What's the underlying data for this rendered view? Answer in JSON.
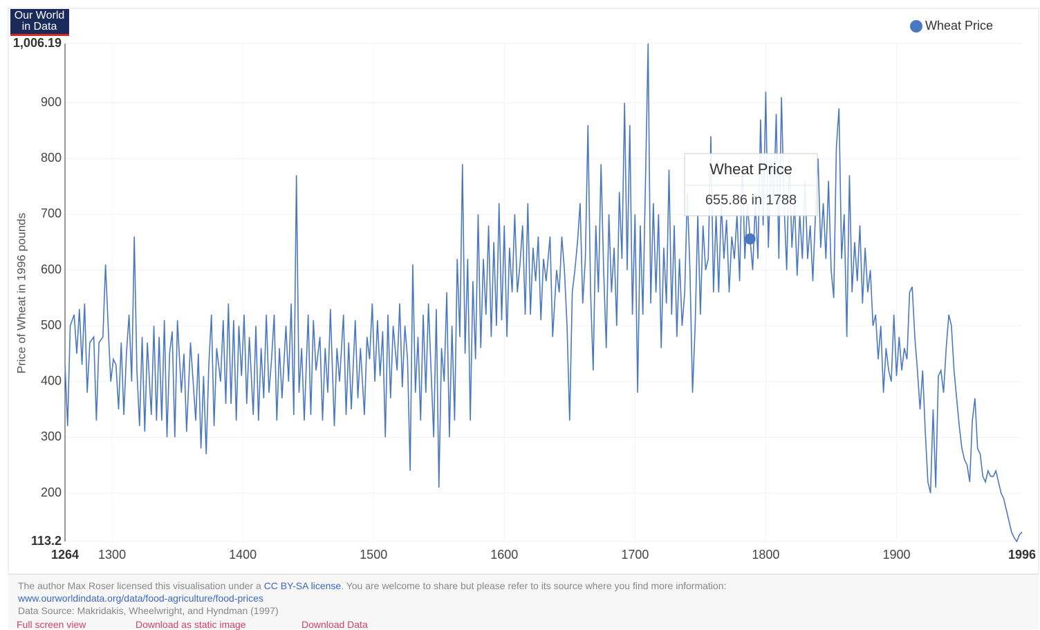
{
  "logo": [
    "Our World",
    "in Data"
  ],
  "chart_data": {
    "type": "line",
    "ylabel": "Price of Wheat in 1996 pounds",
    "xlim": [
      1264,
      1996
    ],
    "xticks": [
      1264,
      1300,
      1400,
      1500,
      1600,
      1700,
      1800,
      1900,
      1996
    ],
    "ylim": [
      113.2,
      1006.19
    ],
    "yticks": [
      113.2,
      200,
      300,
      400,
      500,
      600,
      700,
      800,
      900,
      {
        "value": 1006.19,
        "label": "1,006.19"
      }
    ],
    "grid": true,
    "legend": "top-right",
    "series": [
      {
        "name": "Wheat Price",
        "color": "#4a78c0",
        "x": [
          1264,
          1266,
          1268,
          1271,
          1273,
          1275,
          1277,
          1279,
          1281,
          1283,
          1286,
          1288,
          1290,
          1293,
          1295,
          1297,
          1299,
          1301,
          1303,
          1305,
          1307,
          1309,
          1311,
          1313,
          1315,
          1317,
          1319,
          1321,
          1323,
          1325,
          1327,
          1330,
          1332,
          1334,
          1336,
          1338,
          1340,
          1342,
          1344,
          1346,
          1348,
          1350,
          1353,
          1355,
          1357,
          1360,
          1362,
          1364,
          1366,
          1368,
          1370,
          1372,
          1374,
          1376,
          1378,
          1380,
          1383,
          1385,
          1387,
          1389,
          1391,
          1393,
          1395,
          1397,
          1399,
          1401,
          1403,
          1405,
          1408,
          1410,
          1412,
          1414,
          1416,
          1418,
          1420,
          1422,
          1424,
          1426,
          1428,
          1430,
          1433,
          1435,
          1437,
          1439,
          1441,
          1443,
          1445,
          1447,
          1450,
          1452,
          1454,
          1456,
          1459,
          1461,
          1463,
          1465,
          1467,
          1470,
          1472,
          1474,
          1477,
          1479,
          1481,
          1483,
          1486,
          1488,
          1490,
          1493,
          1495,
          1497,
          1499,
          1501,
          1503,
          1505,
          1507,
          1509,
          1511,
          1513,
          1515,
          1518,
          1520,
          1522,
          1524,
          1526,
          1528,
          1530,
          1532,
          1534,
          1536,
          1538,
          1540,
          1542,
          1544,
          1546,
          1548,
          1550,
          1552,
          1554,
          1556,
          1558,
          1560,
          1562,
          1564,
          1566,
          1568,
          1570,
          1572,
          1574,
          1576,
          1578,
          1580,
          1582,
          1584,
          1586,
          1588,
          1590,
          1592,
          1594,
          1596,
          1598,
          1600,
          1602,
          1604,
          1606,
          1608,
          1610,
          1612,
          1614,
          1616,
          1618,
          1620,
          1622,
          1624,
          1626,
          1628,
          1630,
          1632,
          1635,
          1637,
          1640,
          1642,
          1644,
          1646,
          1648,
          1650,
          1652,
          1654,
          1656,
          1658,
          1660,
          1662,
          1664,
          1666,
          1668,
          1670,
          1672,
          1674,
          1676,
          1678,
          1680,
          1682,
          1684,
          1686,
          1688,
          1690,
          1692,
          1694,
          1696,
          1698,
          1700,
          1702,
          1704,
          1706,
          1708,
          1710,
          1712,
          1714,
          1716,
          1718,
          1720,
          1722,
          1724,
          1726,
          1728,
          1730,
          1732,
          1734,
          1736,
          1738,
          1740,
          1742,
          1744,
          1746,
          1748,
          1750,
          1752,
          1754,
          1756,
          1758,
          1760,
          1762,
          1764,
          1766,
          1768,
          1770,
          1772,
          1774,
          1776,
          1778,
          1780,
          1782,
          1784,
          1786,
          1788,
          1790,
          1792,
          1794,
          1796,
          1798,
          1800,
          1802,
          1804,
          1806,
          1808,
          1810,
          1812,
          1814,
          1816,
          1818,
          1820,
          1822,
          1824,
          1826,
          1828,
          1830,
          1832,
          1834,
          1836,
          1838,
          1840,
          1842,
          1844,
          1846,
          1848,
          1850,
          1852,
          1854,
          1856,
          1858,
          1860,
          1862,
          1864,
          1866,
          1868,
          1870,
          1872,
          1874,
          1876,
          1878,
          1880,
          1882,
          1884,
          1886,
          1888,
          1890,
          1892,
          1894,
          1896,
          1898,
          1900,
          1902,
          1904,
          1906,
          1908,
          1910,
          1912,
          1914,
          1916,
          1918,
          1920,
          1922,
          1924,
          1926,
          1928,
          1930,
          1932,
          1934,
          1936,
          1938,
          1940,
          1942,
          1944,
          1946,
          1948,
          1950,
          1952,
          1954,
          1956,
          1958,
          1960,
          1962,
          1964,
          1966,
          1968,
          1970,
          1972,
          1974,
          1976,
          1978,
          1980,
          1982,
          1984,
          1986,
          1988,
          1990,
          1992,
          1994,
          1996
        ],
        "values": [
          430,
          320,
          500,
          520,
          450,
          530,
          430,
          540,
          380,
          470,
          480,
          330,
          470,
          480,
          610,
          500,
          400,
          440,
          430,
          350,
          470,
          340,
          450,
          520,
          400,
          660,
          420,
          320,
          480,
          310,
          470,
          340,
          500,
          330,
          480,
          330,
          510,
          300,
          450,
          490,
          300,
          510,
          380,
          450,
          310,
          470,
          400,
          330,
          450,
          280,
          410,
          270,
          430,
          520,
          320,
          460,
          400,
          510,
          360,
          540,
          360,
          510,
          330,
          500,
          410,
          520,
          360,
          480,
          340,
          500,
          330,
          460,
          370,
          520,
          380,
          440,
          520,
          330,
          460,
          370,
          500,
          400,
          540,
          340,
          770,
          380,
          460,
          330,
          520,
          340,
          510,
          420,
          480,
          330,
          460,
          380,
          530,
          320,
          460,
          400,
          520,
          340,
          470,
          350,
          510,
          370,
          460,
          340,
          480,
          440,
          540,
          400,
          510,
          410,
          490,
          300,
          520,
          370,
          500,
          420,
          540,
          390,
          500,
          440,
          240,
          610,
          380,
          480,
          330,
          520,
          380,
          540,
          420,
          300,
          530,
          210,
          460,
          400,
          560,
          300,
          500,
          330,
          620,
          480,
          790,
          450,
          620,
          330,
          580,
          440,
          700,
          460,
          620,
          520,
          680,
          480,
          650,
          500,
          720,
          510,
          680,
          480,
          640,
          560,
          700,
          560,
          610,
          680,
          520,
          720,
          520,
          640,
          580,
          660,
          510,
          620,
          580,
          660,
          480,
          600,
          560,
          660,
          600,
          500,
          330,
          560,
          600,
          650,
          720,
          540,
          620,
          860,
          560,
          420,
          680,
          560,
          790,
          600,
          460,
          700,
          560,
          640,
          500,
          740,
          620,
          900,
          600,
          860,
          520,
          700,
          380,
          680,
          520,
          760,
          1006.19,
          540,
          720,
          560,
          700,
          460,
          640,
          540,
          780,
          520,
          680,
          480,
          620,
          500,
          560,
          740,
          600,
          380,
          500,
          700,
          520,
          680,
          600,
          620,
          840,
          560,
          700,
          560,
          720,
          620,
          690,
          560,
          660,
          620,
          700,
          580,
          800,
          620,
          720,
          655.86,
          600,
          720,
          620,
          870,
          680,
          920,
          640,
          800,
          720,
          880,
          620,
          910,
          720,
          600,
          800,
          640,
          720,
          590,
          700,
          620,
          760,
          620,
          680,
          580,
          700,
          800,
          640,
          720,
          620,
          760,
          600,
          550,
          820,
          890,
          620,
          700,
          480,
          770,
          560,
          650,
          580,
          680,
          540,
          640,
          560,
          600,
          500,
          520,
          440,
          500,
          380,
          460,
          420,
          400,
          520,
          410,
          480,
          420,
          460,
          440,
          560,
          570,
          480,
          420,
          350,
          420,
          310,
          220,
          200,
          350,
          210,
          410,
          420,
          380,
          460,
          520,
          500,
          420,
          370,
          320,
          280,
          260,
          250,
          220,
          330,
          370,
          280,
          270,
          230,
          220,
          240,
          230,
          230,
          240,
          220,
          200,
          190,
          170,
          150,
          130,
          120,
          113.2,
          125,
          130
        ]
      }
    ],
    "tooltip": {
      "title": "Wheat Price",
      "text": "655.86 in 1788",
      "x": 1788,
      "value": 655.86
    }
  },
  "footer": {
    "license_pre": "The author Max Roser licensed this visualisation under a ",
    "license_link": "CC BY-SA license",
    "license_post": ". You are welcome to share but please refer to its source where you find more information: ",
    "url": "www.ourworldindata.org/data/food-agriculture/food-prices",
    "source": "Data Source: Makridakis, Wheelwright, and Hyndman (1997)",
    "links": [
      "Full screen view",
      "Download as static image",
      "Download Data"
    ]
  }
}
